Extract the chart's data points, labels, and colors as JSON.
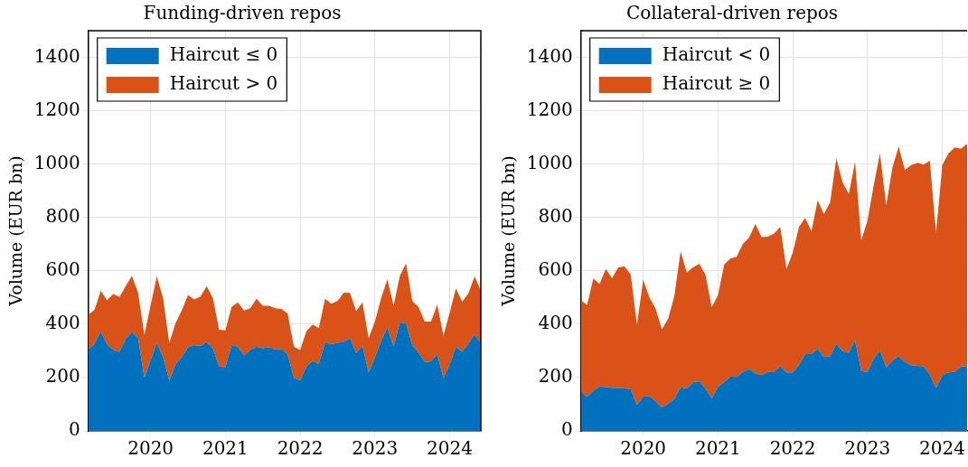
{
  "chart_data": [
    {
      "type": "area",
      "title": "Funding-driven repos",
      "ylabel": "Volume (EUR bn)",
      "stacked": true,
      "grid": true,
      "legend": "top left",
      "x": [
        "2019-03",
        "2019-04",
        "2019-05",
        "2019-06",
        "2019-07",
        "2019-08",
        "2019-09",
        "2019-10",
        "2019-11",
        "2019-12",
        "2020-01",
        "2020-02",
        "2020-03",
        "2020-04",
        "2020-05",
        "2020-06",
        "2020-07",
        "2020-08",
        "2020-09",
        "2020-10",
        "2020-11",
        "2020-12",
        "2021-01",
        "2021-02",
        "2021-03",
        "2021-04",
        "2021-05",
        "2021-06",
        "2021-07",
        "2021-08",
        "2021-09",
        "2021-10",
        "2021-11",
        "2021-12",
        "2022-01",
        "2022-02",
        "2022-03",
        "2022-04",
        "2022-05",
        "2022-06",
        "2022-07",
        "2022-08",
        "2022-09",
        "2022-10",
        "2022-11",
        "2022-12",
        "2023-01",
        "2023-02",
        "2023-03",
        "2023-04",
        "2023-05",
        "2023-06",
        "2023-07",
        "2023-08",
        "2023-09",
        "2023-10",
        "2023-11",
        "2023-12",
        "2024-01",
        "2024-02",
        "2024-03",
        "2024-04",
        "2024-05",
        "2024-06"
      ],
      "xlim": [
        "2019-03",
        "2024-06"
      ],
      "xticks": [
        "2020",
        "2021",
        "2022",
        "2023",
        "2024"
      ],
      "ylim": [
        0,
        1500
      ],
      "yticks": [
        0,
        200,
        400,
        600,
        800,
        1000,
        1200,
        1400
      ],
      "series": [
        {
          "name": "Haircut ≤ 0",
          "color": "#0072bd",
          "values": [
            305,
            327,
            373,
            324,
            305,
            296,
            344,
            371,
            347,
            200,
            265,
            330,
            277,
            189,
            250,
            277,
            313,
            322,
            318,
            333,
            310,
            241,
            239,
            322,
            316,
            283,
            303,
            316,
            310,
            314,
            305,
            307,
            285,
            200,
            189,
            241,
            263,
            250,
            333,
            325,
            330,
            334,
            347,
            292,
            318,
            219,
            275,
            338,
            388,
            316,
            407,
            402,
            322,
            294,
            258,
            261,
            288,
            198,
            250,
            316,
            296,
            327,
            362,
            329
          ]
        },
        {
          "name": "Haircut > 0",
          "color": "#d95319",
          "values": [
            130,
            127,
            153,
            165,
            208,
            206,
            199,
            210,
            170,
            160,
            206,
            249,
            221,
            140,
            154,
            174,
            196,
            171,
            186,
            210,
            188,
            138,
            138,
            143,
            166,
            168,
            157,
            179,
            159,
            155,
            155,
            150,
            155,
            116,
            114,
            132,
            136,
            135,
            162,
            152,
            157,
            184,
            170,
            157,
            164,
            128,
            135,
            160,
            180,
            154,
            174,
            226,
            165,
            171,
            152,
            149,
            185,
            159,
            193,
            218,
            188,
            188,
            217,
            197
          ]
        }
      ]
    },
    {
      "type": "area",
      "title": "Collateral-driven repos",
      "ylabel": "Volume (EUR bn)",
      "stacked": true,
      "grid": true,
      "legend": "top left",
      "x": [
        "2019-03",
        "2019-04",
        "2019-05",
        "2019-06",
        "2019-07",
        "2019-08",
        "2019-09",
        "2019-10",
        "2019-11",
        "2019-12",
        "2020-01",
        "2020-02",
        "2020-03",
        "2020-04",
        "2020-05",
        "2020-06",
        "2020-07",
        "2020-08",
        "2020-09",
        "2020-10",
        "2020-11",
        "2020-12",
        "2021-01",
        "2021-02",
        "2021-03",
        "2021-04",
        "2021-05",
        "2021-06",
        "2021-07",
        "2021-08",
        "2021-09",
        "2021-10",
        "2021-11",
        "2021-12",
        "2022-01",
        "2022-02",
        "2022-03",
        "2022-04",
        "2022-05",
        "2022-06",
        "2022-07",
        "2022-08",
        "2022-09",
        "2022-10",
        "2022-11",
        "2022-12",
        "2023-01",
        "2023-02",
        "2023-03",
        "2023-04",
        "2023-05",
        "2023-06",
        "2023-07",
        "2023-08",
        "2023-09",
        "2023-10",
        "2023-11",
        "2023-12",
        "2024-01",
        "2024-02",
        "2024-03",
        "2024-04",
        "2024-05"
      ],
      "xlim": [
        "2019-03",
        "2024-05"
      ],
      "xticks": [
        "2020",
        "2021",
        "2022",
        "2023",
        "2024"
      ],
      "ylim": [
        0,
        1500
      ],
      "yticks": [
        0,
        200,
        400,
        600,
        800,
        1000,
        1200,
        1400
      ],
      "series": [
        {
          "name": "Haircut < 0",
          "color": "#0072bd",
          "values": [
            148,
            128,
            150,
            167,
            164,
            162,
            161,
            160,
            156,
            97,
            128,
            130,
            111,
            88,
            102,
            120,
            163,
            159,
            183,
            186,
            158,
            122,
            165,
            183,
            203,
            202,
            221,
            232,
            216,
            209,
            221,
            220,
            243,
            219,
            219,
            247,
            288,
            288,
            308,
            277,
            280,
            327,
            299,
            293,
            340,
            224,
            221,
            271,
            302,
            238,
            263,
            280,
            258,
            246,
            244,
            242,
            211,
            161,
            208,
            219,
            221,
            241,
            243
          ]
        },
        {
          "name": "Haircut ≥ 0",
          "color": "#d95319",
          "values": [
            341,
            344,
            421,
            383,
            443,
            410,
            452,
            456,
            431,
            301,
            438,
            370,
            347,
            293,
            318,
            385,
            510,
            434,
            430,
            440,
            427,
            342,
            343,
            441,
            443,
            451,
            480,
            493,
            559,
            517,
            507,
            520,
            521,
            388,
            449,
            517,
            510,
            460,
            556,
            536,
            577,
            695,
            633,
            595,
            669,
            490,
            568,
            650,
            738,
            608,
            724,
            786,
            720,
            750,
            761,
            756,
            801,
            581,
            788,
            821,
            841,
            816,
            834
          ]
        }
      ]
    }
  ]
}
